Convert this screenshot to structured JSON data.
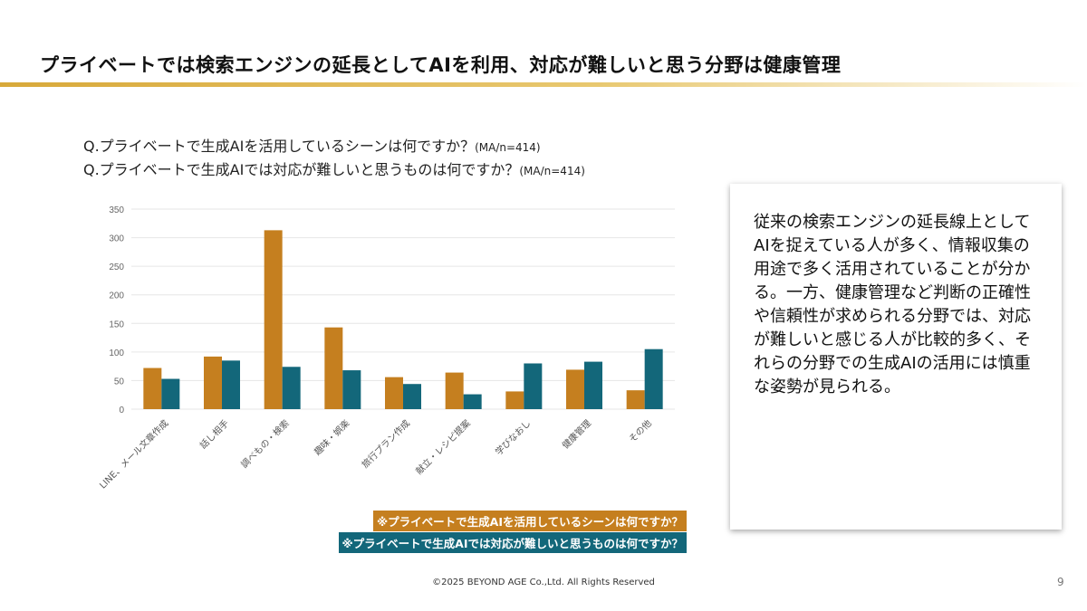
{
  "title": "プライベートでは検索エンジンの延長としてAIを利用、対応が難しいと思う分野は健康管理",
  "questions": [
    {
      "text": "Q.プライベートで生成AIを活用しているシーンは何ですか？",
      "note": "(MA/n=414)"
    },
    {
      "text": "Q.プライベートで生成AIでは対応が難しいと思うものは何ですか？",
      "note": "(MA/n=414)"
    }
  ],
  "chart_data": {
    "type": "bar",
    "categories": [
      "LINE、メール文章作成",
      "話し相手",
      "調べもの・検索",
      "趣味・娯楽",
      "旅行プラン作成",
      "献立・レシピ提案",
      "学びなおし",
      "健康管理",
      "その他"
    ],
    "series": [
      {
        "name": "※プライベートで生成AIを活用しているシーンは何ですか？",
        "color": "#c57f1f",
        "values": [
          72,
          92,
          313,
          143,
          56,
          64,
          31,
          69,
          33
        ]
      },
      {
        "name": "※プライベートで生成AIでは対応が難しいと思うものは何ですか？",
        "color": "#13677a",
        "values": [
          53,
          85,
          74,
          68,
          44,
          26,
          80,
          83,
          105
        ]
      }
    ],
    "ylim": [
      0,
      350
    ],
    "yticks": [
      "0",
      "50",
      "100",
      "150",
      "200",
      "250",
      "300",
      "350"
    ],
    "grid": true,
    "legend": "bottom-right"
  },
  "summary": "従来の検索エンジンの延長線上としてAIを捉えている人が多く、情報収集の用途で多く活用されていることが分かる。一方、健康管理など判断の正確性や信頼性が求められる分野では、対応が難しいと感じる人が比較的多く、それらの分野での生成AIの活用には慎重な姿勢が見られる。",
  "footer": "©2025 BEYOND AGE Co.,Ltd. All Rights Reserved",
  "page_number": "9"
}
